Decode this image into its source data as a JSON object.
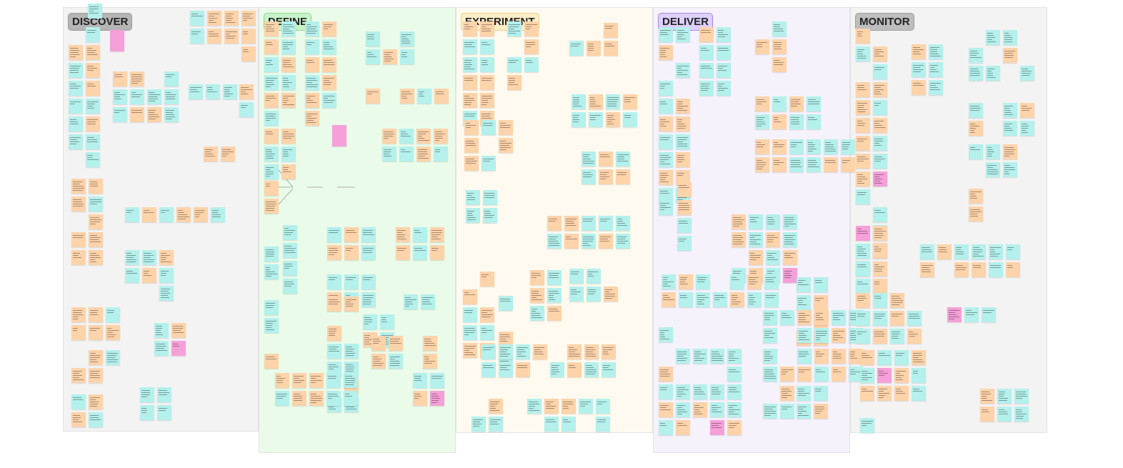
{
  "sections": [
    {
      "label": "DISCOVER"
    },
    {
      "label": "DEFINE"
    },
    {
      "label": "EXPERIMENT"
    },
    {
      "label": "DELIVER"
    },
    {
      "label": "MONITOR"
    }
  ]
}
